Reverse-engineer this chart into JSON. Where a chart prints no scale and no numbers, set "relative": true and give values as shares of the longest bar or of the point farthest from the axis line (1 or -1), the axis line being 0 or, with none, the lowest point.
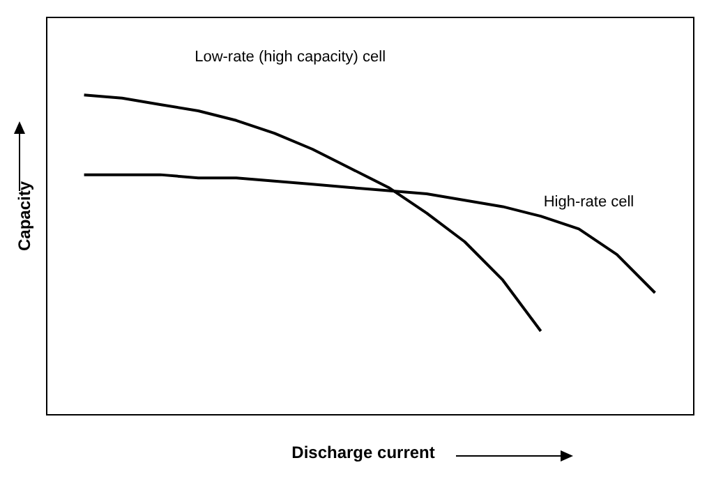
{
  "chart_data": {
    "type": "line",
    "xlabel": "Discharge current",
    "ylabel": "Capacity",
    "relative": true,
    "tick_labels": false,
    "categories": [
      null,
      null,
      null,
      null,
      null,
      null,
      null,
      null,
      null,
      null,
      null,
      null,
      null,
      null,
      null,
      null
    ],
    "series": [
      {
        "name": "Low-rate (high capacity) cell",
        "color": "#000000",
        "values": [
          1.0,
          0.99,
          0.97,
          0.95,
          0.92,
          0.88,
          0.83,
          0.77,
          0.71,
          0.63,
          0.54,
          0.42,
          0.26,
          null,
          null,
          null
        ]
      },
      {
        "name": "High-rate cell",
        "color": "#000000",
        "values": [
          0.75,
          0.75,
          0.75,
          0.74,
          0.74,
          0.73,
          0.72,
          0.71,
          0.7,
          0.69,
          0.67,
          0.65,
          0.62,
          0.58,
          0.5,
          0.38
        ]
      }
    ]
  }
}
